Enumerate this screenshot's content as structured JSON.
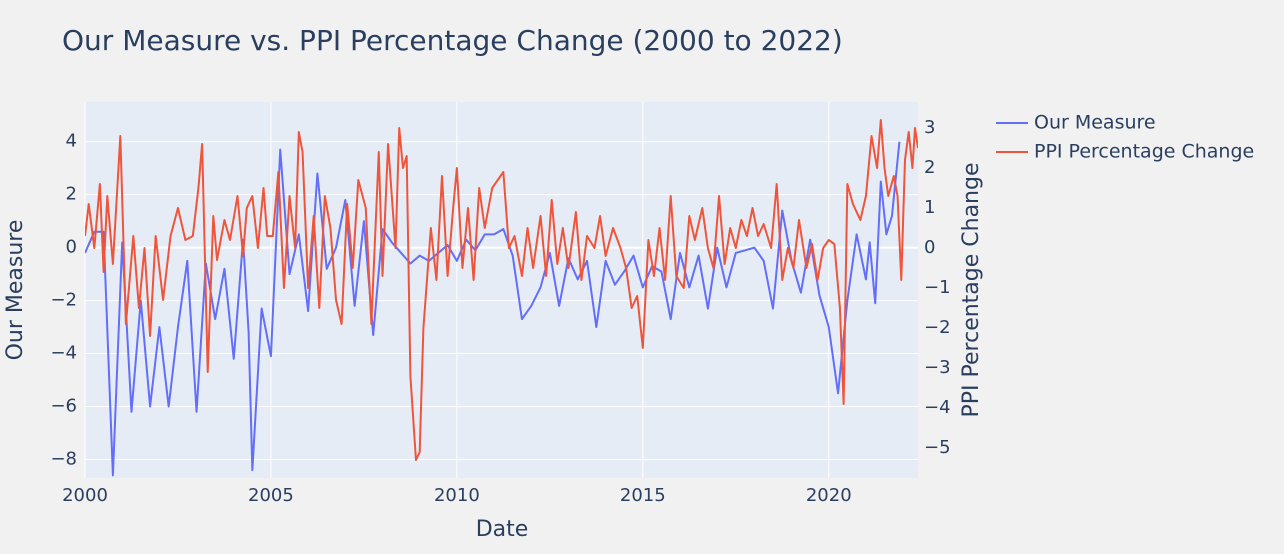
{
  "chart_data": {
    "type": "line",
    "title": "Our Measure vs. PPI Percentage Change (2000 to 2022)",
    "x_label": "Date",
    "y_label": "Our Measure",
    "y2_label": "PPI Percentage Change",
    "xlim": [
      2000,
      2022.4
    ],
    "xticks": [
      2000,
      2005,
      2010,
      2015,
      2020
    ],
    "ylim": [
      -8.7,
      5.5
    ],
    "yticks": [
      {
        "value": -8,
        "label": "−8"
      },
      {
        "value": -6,
        "label": "−6"
      },
      {
        "value": -4,
        "label": "−4"
      },
      {
        "value": -2,
        "label": "−2"
      },
      0,
      2,
      4
    ],
    "y2lim": [
      -5.75,
      3.65
    ],
    "y2ticks": [
      {
        "value": -5,
        "label": "−5"
      },
      {
        "value": -4,
        "label": "−4"
      },
      {
        "value": -3,
        "label": "−3"
      },
      {
        "value": -2,
        "label": "−2"
      },
      {
        "value": -1,
        "label": "−1"
      },
      0,
      1,
      2,
      3
    ],
    "grid": true,
    "legend": "right",
    "series": [
      {
        "name": "Our Measure",
        "color": "#636efa",
        "x": [
          2000.0,
          2000.25,
          2000.5,
          2000.75,
          2001.0,
          2001.25,
          2001.5,
          2001.75,
          2002.0,
          2002.25,
          2002.5,
          2002.75,
          2003.0,
          2003.25,
          2003.5,
          2003.75,
          2004.0,
          2004.25,
          2004.4,
          2004.5,
          2004.75,
          2005.0,
          2005.25,
          2005.5,
          2005.75,
          2006.0,
          2006.25,
          2006.5,
          2006.75,
          2007.0,
          2007.25,
          2007.5,
          2007.75,
          2008.0,
          2008.25,
          2008.5,
          2008.75,
          2009.0,
          2009.25,
          2009.5,
          2009.75,
          2010.0,
          2010.25,
          2010.5,
          2010.75,
          2011.0,
          2011.25,
          2011.5,
          2011.75,
          2012.0,
          2012.25,
          2012.5,
          2012.75,
          2013.0,
          2013.25,
          2013.5,
          2013.75,
          2014.0,
          2014.25,
          2014.5,
          2014.75,
          2015.0,
          2015.25,
          2015.5,
          2015.75,
          2016.0,
          2016.25,
          2016.5,
          2016.75,
          2017.0,
          2017.25,
          2017.5,
          2017.75,
          2018.0,
          2018.25,
          2018.5,
          2018.75,
          2019.0,
          2019.25,
          2019.5,
          2019.75,
          2020.0,
          2020.25,
          2020.5,
          2020.75,
          2021.0,
          2021.1,
          2021.25,
          2021.4,
          2021.55,
          2021.7,
          2021.9
        ],
        "values": [
          -0.2,
          0.6,
          0.6,
          -8.6,
          0.2,
          -6.2,
          -2.0,
          -6.0,
          -3.0,
          -6.0,
          -3.0,
          -0.5,
          -6.2,
          -0.6,
          -2.7,
          -0.8,
          -4.2,
          0.3,
          -3.2,
          -8.4,
          -2.3,
          -4.1,
          3.7,
          -1.0,
          0.5,
          -2.4,
          2.8,
          -0.8,
          0.0,
          1.8,
          -2.2,
          1.0,
          -3.3,
          0.7,
          0.2,
          -0.2,
          -0.6,
          -0.3,
          -0.5,
          -0.2,
          0.1,
          -0.5,
          0.3,
          -0.1,
          0.5,
          0.5,
          0.7,
          -0.3,
          -2.7,
          -2.2,
          -1.5,
          -0.2,
          -2.2,
          -0.4,
          -1.2,
          -0.5,
          -3.0,
          -0.5,
          -1.4,
          -0.9,
          -0.3,
          -1.5,
          -0.7,
          -0.9,
          -2.7,
          -0.2,
          -1.5,
          -0.3,
          -2.3,
          0.0,
          -1.5,
          -0.2,
          -0.1,
          0.0,
          -0.5,
          -2.3,
          1.4,
          -0.5,
          -1.7,
          0.3,
          -1.8,
          -3.0,
          -5.5,
          -2.0,
          0.5,
          -1.2,
          0.2,
          -2.1,
          2.5,
          0.5,
          1.2,
          4.0
        ]
      },
      {
        "name": "PPI Percentage Change",
        "color": "#ef553b",
        "axis": "y2",
        "x": [
          2000.0,
          2000.1,
          2000.25,
          2000.4,
          2000.5,
          2000.6,
          2000.75,
          2000.95,
          2001.1,
          2001.3,
          2001.45,
          2001.6,
          2001.75,
          2001.9,
          2002.1,
          2002.3,
          2002.5,
          2002.7,
          2002.9,
          2003.05,
          2003.15,
          2003.3,
          2003.45,
          2003.55,
          2003.75,
          2003.9,
          2004.1,
          2004.25,
          2004.35,
          2004.5,
          2004.65,
          2004.8,
          2004.9,
          2005.05,
          2005.2,
          2005.35,
          2005.5,
          2005.65,
          2005.75,
          2005.85,
          2006.0,
          2006.15,
          2006.3,
          2006.45,
          2006.6,
          2006.75,
          2006.9,
          2007.05,
          2007.2,
          2007.35,
          2007.55,
          2007.7,
          2007.9,
          2008.0,
          2008.15,
          2008.35,
          2008.45,
          2008.55,
          2008.65,
          2008.75,
          2008.9,
          2009.0,
          2009.1,
          2009.3,
          2009.45,
          2009.6,
          2009.75,
          2009.9,
          2010.0,
          2010.15,
          2010.3,
          2010.45,
          2010.6,
          2010.75,
          2010.95,
          2011.1,
          2011.25,
          2011.4,
          2011.55,
          2011.75,
          2011.9,
          2012.05,
          2012.25,
          2012.4,
          2012.55,
          2012.7,
          2012.85,
          2013.0,
          2013.2,
          2013.35,
          2013.5,
          2013.7,
          2013.85,
          2014.0,
          2014.2,
          2014.4,
          2014.55,
          2014.7,
          2014.85,
          2015.0,
          2015.15,
          2015.3,
          2015.45,
          2015.6,
          2015.75,
          2015.9,
          2016.1,
          2016.25,
          2016.4,
          2016.6,
          2016.75,
          2016.9,
          2017.05,
          2017.2,
          2017.35,
          2017.5,
          2017.65,
          2017.8,
          2017.95,
          2018.1,
          2018.25,
          2018.45,
          2018.6,
          2018.75,
          2018.9,
          2019.05,
          2019.2,
          2019.4,
          2019.55,
          2019.7,
          2019.85,
          2020.0,
          2020.15,
          2020.3,
          2020.4,
          2020.5,
          2020.65,
          2020.85,
          2021.0,
          2021.15,
          2021.3,
          2021.4,
          2021.5,
          2021.6,
          2021.75,
          2021.85,
          2021.95,
          2022.05,
          2022.15,
          2022.25,
          2022.32,
          2022.4
        ],
        "values": [
          0.3,
          1.1,
          0.0,
          1.6,
          -0.6,
          1.3,
          -0.4,
          2.8,
          -1.9,
          0.3,
          -1.5,
          0.0,
          -2.2,
          0.3,
          -1.3,
          0.3,
          1.0,
          0.2,
          0.3,
          1.5,
          2.6,
          -3.1,
          0.8,
          -0.3,
          0.7,
          0.2,
          1.3,
          -0.2,
          1.0,
          1.3,
          0.0,
          1.5,
          0.3,
          0.3,
          1.9,
          -1.0,
          1.3,
          0.0,
          2.9,
          2.4,
          -1.0,
          0.8,
          -1.5,
          1.3,
          0.5,
          -1.3,
          -1.9,
          1.1,
          -0.5,
          1.7,
          1.0,
          -1.9,
          2.4,
          -0.7,
          2.6,
          0.0,
          3.0,
          2.0,
          2.3,
          -3.2,
          -5.3,
          -5.1,
          -2.0,
          0.5,
          -0.8,
          1.8,
          -0.7,
          1.0,
          2.0,
          -0.5,
          1.0,
          -0.8,
          1.5,
          0.5,
          1.5,
          1.7,
          1.9,
          0.0,
          0.3,
          -0.7,
          0.5,
          -0.5,
          0.8,
          -0.7,
          1.2,
          -0.4,
          0.5,
          -0.5,
          0.9,
          -0.8,
          0.3,
          0.0,
          0.8,
          -0.2,
          0.5,
          0.0,
          -0.5,
          -1.5,
          -1.2,
          -2.5,
          0.2,
          -0.7,
          0.5,
          -0.8,
          1.3,
          -0.7,
          -1.0,
          0.8,
          0.2,
          1.0,
          0.0,
          -0.5,
          1.3,
          -0.4,
          0.5,
          0.0,
          0.7,
          0.3,
          1.0,
          0.3,
          0.6,
          0.0,
          1.6,
          -0.8,
          0.0,
          -0.5,
          0.7,
          -0.5,
          0.1,
          -0.8,
          0.0,
          0.2,
          0.1,
          -1.5,
          -3.9,
          1.6,
          1.1,
          0.7,
          1.3,
          2.8,
          2.0,
          3.2,
          2.0,
          1.3,
          1.8,
          1.3,
          -0.8,
          2.2,
          2.9,
          2.0,
          3.0,
          2.5
        ]
      }
    ]
  }
}
